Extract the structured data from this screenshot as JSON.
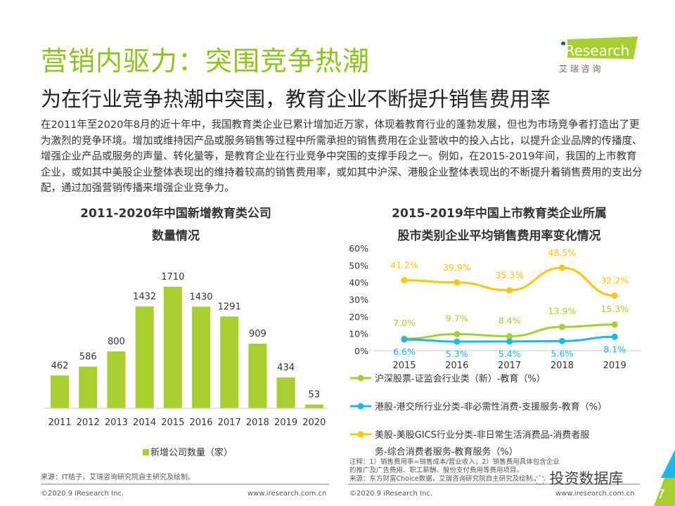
{
  "header": {
    "title": "营销内驱力：突围竞争热潮",
    "subtitle": "为在行业竞争热潮中突围，教育企业不断提升销售费用率",
    "logo_text": "iResearch",
    "logo_sub": "艾 瑞 咨 询"
  },
  "body_text": "在2011年至2020年8月的近十年中，我国教育类企业已累计增加近万家，体现着教育行业的蓬勃发展，但也为市场竞争者打造出了更为激烈的竞争环境。增加或维持因产品或服务销售等过程中所需承担的销售费用在企业营收中的投入占比，以提升企业品牌的传播度、增强企业产品或服务的声量、转化量等，是教育企业在行业竞争中突围的支撑手段之一。例如，在2015-2019年间，我国的上市教育企业，或如其中美股企业整体表现出的维持着较高的销售费用率，或如其中沪深、港股企业整体表现出的不断提升着销售费用的支出分配，通过加强营销传播来增强企业竞争力。",
  "chart_data": [
    {
      "type": "bar",
      "title_line1": "2011-2020年中国新增教育类公司",
      "title_line2": "数量情况",
      "categories": [
        "2011",
        "2012",
        "2013",
        "2014",
        "2015",
        "2016",
        "2017",
        "2018",
        "2019",
        "2020"
      ],
      "values": [
        462,
        586,
        800,
        1432,
        1710,
        1430,
        1291,
        909,
        434,
        53
      ],
      "legend": "新增公司数量（家）",
      "color": "#a6cf2f"
    },
    {
      "type": "line",
      "title_line1": "2015-2019年中国上市教育类企业所属",
      "title_line2": "股市类别企业平均销售费用率变化情况",
      "categories": [
        "2015",
        "2016",
        "2017",
        "2018",
        "2019"
      ],
      "y_ticks": [
        "0%",
        "10%",
        "20%",
        "30%",
        "40%",
        "50%",
        "60%"
      ],
      "ylim": [
        0,
        60
      ],
      "series": [
        {
          "name": "沪深股票-证监会行业类（新）-教育（%）",
          "values": [
            7.0,
            9.7,
            8.4,
            13.9,
            15.3
          ],
          "labels": [
            "7.0%",
            "9.7%",
            "8.4%",
            "13.9%",
            "15.3%"
          ],
          "color": "#a6cf2f"
        },
        {
          "name": "港股-港交所行业分类-非必需性消费-支援服务-教育（%）",
          "values": [
            6.6,
            5.3,
            5.4,
            5.6,
            8.1
          ],
          "labels": [
            "6.6%",
            "5.3%",
            "5.4%",
            "5.6%",
            "8.1%"
          ],
          "color": "#1cb6e8"
        },
        {
          "name": "美股-美股GICS行业分类-非日常生活消费品-消费者服务-综合消费者服务-教育服务（%）",
          "values": [
            41.2,
            39.9,
            35.3,
            48.5,
            32.2
          ],
          "labels": [
            "41.2%",
            "39.9%",
            "35.3%",
            "48.5%",
            "32.2%"
          ],
          "color": "#ffc60b"
        }
      ]
    }
  ],
  "notes": "注释：1）销售费用率=销售成本/营业收入；2）销售费用具体包含企业的推广及广告费用、职工薪酬、股份支付费用等费用项目。",
  "source_right": "来源：东方财富Choice数据，艾瑞咨询研究院自主研究及绘制。",
  "source_left": "来源：IT桔子，艾瑞咨询研究院自主研究及绘制。",
  "footer": {
    "copyright": "©2020.9 iResearch Inc.",
    "url": "www.iresearch.com.cn",
    "page": "7",
    "watermark": "投资数据库"
  }
}
